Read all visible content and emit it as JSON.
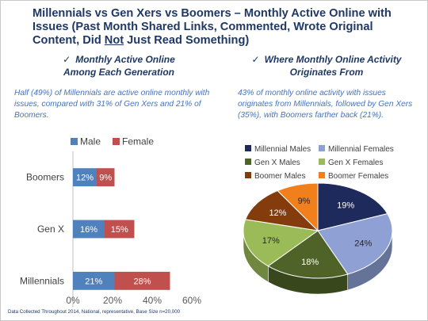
{
  "title": {
    "part1": "Millennials vs Gen Xers vs Boomers – Monthly Active Online with Issues (Past Month Shared Links, Commented, Wrote Original Content, Did ",
    "underlined": "Not",
    "part2": " Just Read Something)"
  },
  "left": {
    "check": "✓",
    "heading_line1": "Monthly Active Online",
    "heading_line2": "Among Each Generation",
    "description": "Half (49%) of Millennials are active online monthly with issues, compared with 31% of Gen Xers and 21% of Boomers."
  },
  "right": {
    "check": "✓",
    "heading_line1": "Where Monthly Online Activity",
    "heading_line2": "Originates From",
    "description": "43% of monthly online activity with issues originates from Millennials, followed by Gen Xers (35%), with Boomers farther back (21%)."
  },
  "footnote": "Data Collected Throughout 2014, National, representative, Base Size n=20,000",
  "colors": {
    "male": "#4f81bd",
    "female": "#c0504d",
    "millennial_males": "#1f2a5c",
    "millennial_females": "#8ea0d4",
    "genx_males": "#4f6228",
    "genx_females": "#9bbb59",
    "boomer_males": "#843c0c",
    "boomer_females": "#f07f1c"
  },
  "chart_data": [
    {
      "type": "bar",
      "orientation": "horizontal",
      "stacked": true,
      "categories": [
        "Boomers",
        "Gen X",
        "Millennials"
      ],
      "series": [
        {
          "name": "Male",
          "values": [
            12,
            16,
            21
          ],
          "labels": [
            "12%",
            "16%",
            "21%"
          ]
        },
        {
          "name": "Female",
          "values": [
            9,
            15,
            28
          ],
          "labels": [
            "9%",
            "15%",
            "28%"
          ]
        }
      ],
      "xlim": [
        0,
        60
      ],
      "xticks": [
        "0%",
        "20%",
        "40%",
        "60%"
      ],
      "legend": "top"
    },
    {
      "type": "pie",
      "style": "3d",
      "slices": [
        {
          "name": "Millennial Males",
          "value": 19,
          "label": "19%"
        },
        {
          "name": "Millennial Females",
          "value": 24,
          "label": "24%"
        },
        {
          "name": "Gen X Males",
          "value": 18,
          "label": "18%"
        },
        {
          "name": "Gen X Females",
          "value": 17,
          "label": "17%"
        },
        {
          "name": "Boomer Males",
          "value": 12,
          "label": "12%"
        },
        {
          "name": "Boomer Females",
          "value": 9,
          "label": "9%"
        }
      ],
      "legend": "top"
    }
  ]
}
